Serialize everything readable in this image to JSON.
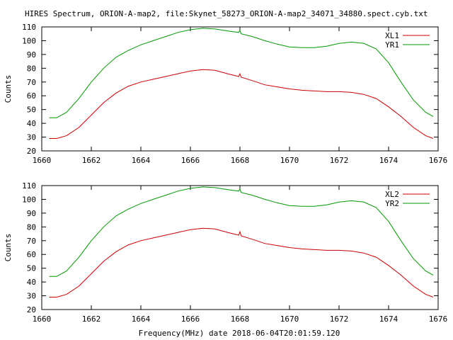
{
  "title": "HIRES Spectrum, ORION-A-map2, file:Skynet_58273_ORION-A-map2_34071_34880.spect.cyb.txt",
  "xlabel": "Frequency(MHz) date 2018-06-04T20:01:59.120",
  "colors": {
    "red": "#cc0000",
    "green": "#009900",
    "axis": "#000000",
    "background": "#ffffff"
  },
  "chart_data": [
    {
      "type": "line",
      "ylabel": "Counts",
      "xlim": [
        1660,
        1676
      ],
      "ylim": [
        20,
        110
      ],
      "xticks": [
        1660,
        1662,
        1664,
        1666,
        1668,
        1670,
        1672,
        1674,
        1676
      ],
      "yticks": [
        20,
        30,
        40,
        50,
        60,
        70,
        80,
        90,
        100,
        110
      ],
      "legend_position": "top-right",
      "grid": false,
      "series": [
        {
          "name": "XL1",
          "color": "#cc0000",
          "x": [
            1660.3,
            1660.6,
            1661,
            1661.5,
            1662,
            1662.5,
            1663,
            1663.5,
            1664,
            1664.5,
            1665,
            1665.5,
            1666,
            1666.5,
            1667,
            1667.5,
            1667.95,
            1668,
            1668.05,
            1668.5,
            1669,
            1669.5,
            1670,
            1670.5,
            1671,
            1671.5,
            1672,
            1672.5,
            1673,
            1673.5,
            1674,
            1674.5,
            1675,
            1675.5,
            1675.8
          ],
          "y": [
            29,
            29,
            31,
            37,
            46,
            55,
            62,
            67,
            70,
            72,
            74,
            76,
            78,
            79,
            78.5,
            76,
            74,
            76,
            73.5,
            71,
            68,
            66.5,
            65,
            64,
            63.5,
            63,
            63,
            62.5,
            61,
            58,
            52,
            45,
            37,
            31,
            29
          ]
        },
        {
          "name": "YR1",
          "color": "#009900",
          "x": [
            1660.3,
            1660.6,
            1661,
            1661.5,
            1662,
            1662.5,
            1663,
            1663.5,
            1664,
            1664.5,
            1665,
            1665.5,
            1666,
            1666.5,
            1667,
            1667.5,
            1667.95,
            1668,
            1668.05,
            1668.5,
            1669,
            1669.5,
            1670,
            1670.5,
            1671,
            1671.5,
            1672,
            1672.5,
            1673,
            1673.5,
            1674,
            1674.5,
            1675,
            1675.5,
            1675.8
          ],
          "y": [
            44,
            44,
            48,
            58,
            70,
            80,
            88,
            93,
            97,
            100,
            103,
            106,
            108,
            109,
            108.5,
            107,
            106,
            107.5,
            105,
            103,
            100,
            97.5,
            95.5,
            95,
            95,
            96,
            98,
            99,
            98,
            94,
            84,
            70,
            57,
            48,
            45
          ]
        }
      ]
    },
    {
      "type": "line",
      "ylabel": "Counts",
      "xlim": [
        1660,
        1676
      ],
      "ylim": [
        20,
        110
      ],
      "xticks": [
        1660,
        1662,
        1664,
        1666,
        1668,
        1670,
        1672,
        1674,
        1676
      ],
      "yticks": [
        20,
        30,
        40,
        50,
        60,
        70,
        80,
        90,
        100,
        110
      ],
      "legend_position": "top-right",
      "grid": false,
      "series": [
        {
          "name": "XL2",
          "color": "#cc0000",
          "x": [
            1660.3,
            1660.6,
            1661,
            1661.5,
            1662,
            1662.5,
            1663,
            1663.5,
            1664,
            1664.5,
            1665,
            1665.5,
            1666,
            1666.5,
            1667,
            1667.5,
            1667.95,
            1668,
            1668.05,
            1668.5,
            1669,
            1669.5,
            1670,
            1670.5,
            1671,
            1671.5,
            1672,
            1672.5,
            1673,
            1673.5,
            1674,
            1674.5,
            1675,
            1675.5,
            1675.8
          ],
          "y": [
            29,
            29,
            31,
            37,
            46,
            55,
            62,
            67,
            70,
            72,
            74,
            76,
            78,
            79,
            78.5,
            76,
            74,
            76.5,
            73.5,
            71,
            68,
            66.5,
            65,
            64,
            63.5,
            63,
            63,
            62.5,
            61,
            58,
            52,
            45,
            37,
            31,
            29
          ]
        },
        {
          "name": "YR2",
          "color": "#009900",
          "x": [
            1660.3,
            1660.6,
            1661,
            1661.5,
            1662,
            1662.5,
            1663,
            1663.5,
            1664,
            1664.5,
            1665,
            1665.5,
            1666,
            1666.5,
            1667,
            1667.5,
            1667.95,
            1668,
            1668.05,
            1668.5,
            1669,
            1669.5,
            1670,
            1670.5,
            1671,
            1671.5,
            1672,
            1672.5,
            1673,
            1673.5,
            1674,
            1674.5,
            1675,
            1675.5,
            1675.8
          ],
          "y": [
            44,
            44,
            48,
            58,
            70,
            80,
            88,
            93,
            97,
            100,
            103,
            106,
            108,
            109,
            108.5,
            107,
            106,
            107.5,
            105,
            103,
            100,
            97.5,
            95.5,
            95,
            95,
            96,
            98,
            99,
            98,
            94,
            84,
            70,
            57,
            48,
            45
          ]
        }
      ]
    }
  ]
}
